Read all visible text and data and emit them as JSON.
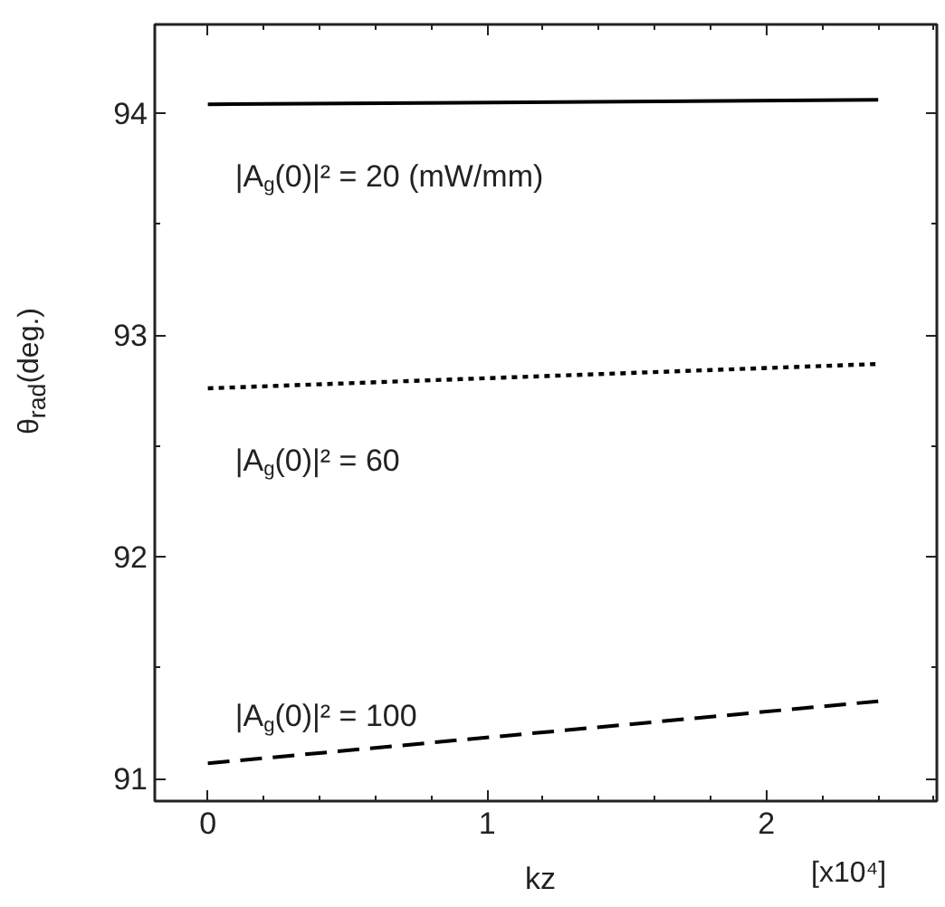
{
  "chart_data": {
    "type": "line",
    "xlabel": "kz",
    "ylabel": "θ$_{rad}$(deg.)",
    "x": [
      0,
      2.4
    ],
    "series": [
      {
        "name": "|A$_{g}$(0)|² = 20 (mW/mm)",
        "color": "#000000",
        "line_style": "solid",
        "values": [
          94.04,
          94.06
        ]
      },
      {
        "name": "|A$_{g}$(0)|² = 60",
        "color": "#000000",
        "line_style": "dotted",
        "values": [
          92.76,
          92.87
        ]
      },
      {
        "name": "|A$_{g}$(0)|² = 100",
        "color": "#000000",
        "line_style": "dashed",
        "values": [
          91.07,
          91.35
        ]
      }
    ],
    "xlim": [
      -0.19,
      2.61
    ],
    "ylim": [
      90.9,
      94.4
    ],
    "xticks": [
      0,
      1,
      2
    ],
    "yticks": [
      91,
      92,
      93,
      94
    ],
    "annotations": [
      "[x10⁴]"
    ]
  }
}
